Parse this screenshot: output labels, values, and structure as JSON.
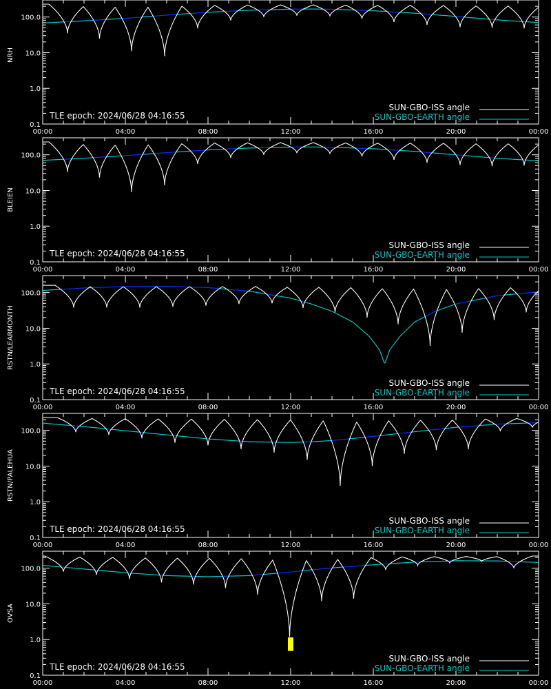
{
  "colors": {
    "background": "#000000",
    "axes": "#ffffff",
    "iss_line": "#ffffff",
    "earth_line_above": "#00cccc",
    "earth_line_below": "#0033ff",
    "marker": "#ffff00"
  },
  "legend": {
    "iss_label": "SUN-GBO-ISS angle",
    "earth_label": "SUN-GBO-EARTH angle"
  },
  "chart_data": [
    {
      "type": "line",
      "ylabel": "NRH",
      "epoch_text": "TLE epoch: 2024/06/28 04:16:55",
      "xlim_hours": [
        0,
        24
      ],
      "x_tick_labels": [
        "00:00",
        "04:00",
        "08:00",
        "12:00",
        "16:00",
        "20:00",
        "00:00"
      ],
      "ylim": [
        0.1,
        300
      ],
      "y_scale": "log",
      "y_tick_labels": [
        "0.1",
        "1.0",
        "10.0",
        "100.0"
      ],
      "earth_series": {
        "x": [
          0,
          2,
          4,
          6,
          8,
          10,
          12,
          13,
          14,
          16,
          18,
          20,
          22,
          24
        ],
        "y": [
          68,
          78,
          92,
          113,
          136,
          155,
          166,
          168,
          165,
          150,
          128,
          104,
          83,
          70
        ]
      },
      "iss_dips": [
        {
          "t": 1.2,
          "min": 35
        },
        {
          "t": 2.75,
          "min": 25
        },
        {
          "t": 4.3,
          "min": 11
        },
        {
          "t": 5.9,
          "min": 8
        },
        {
          "t": 7.5,
          "min": 48
        },
        {
          "t": 9.1,
          "min": 80
        },
        {
          "t": 10.7,
          "min": 100
        },
        {
          "t": 12.3,
          "min": 110
        },
        {
          "t": 13.9,
          "min": 105
        },
        {
          "t": 15.45,
          "min": 90
        },
        {
          "t": 17.0,
          "min": 72
        },
        {
          "t": 18.6,
          "min": 60
        },
        {
          "t": 20.2,
          "min": 52
        },
        {
          "t": 21.75,
          "min": 50
        },
        {
          "t": 23.3,
          "min": 48
        }
      ],
      "iss_max": 230,
      "markers": []
    },
    {
      "type": "line",
      "ylabel": "BLEIEN",
      "epoch_text": "TLE epoch: 2024/06/28 04:16:55",
      "xlim_hours": [
        0,
        24
      ],
      "x_tick_labels": [
        "00:00",
        "04:00",
        "08:00",
        "12:00",
        "16:00",
        "20:00",
        "00:00"
      ],
      "ylim": [
        0.1,
        300
      ],
      "y_scale": "log",
      "y_tick_labels": [
        "0.1",
        "1.0",
        "10.0",
        "100.0"
      ],
      "earth_series": {
        "x": [
          0,
          2,
          4,
          6,
          8,
          10,
          12,
          13,
          14,
          16,
          18,
          20,
          22,
          24
        ],
        "y": [
          70,
          80,
          95,
          115,
          137,
          155,
          165,
          166,
          163,
          148,
          125,
          100,
          80,
          68
        ]
      },
      "iss_dips": [
        {
          "t": 1.2,
          "min": 33
        },
        {
          "t": 2.75,
          "min": 23
        },
        {
          "t": 4.3,
          "min": 9
        },
        {
          "t": 5.9,
          "min": 14
        },
        {
          "t": 7.5,
          "min": 55
        },
        {
          "t": 9.1,
          "min": 82
        },
        {
          "t": 10.7,
          "min": 100
        },
        {
          "t": 12.3,
          "min": 112
        },
        {
          "t": 13.9,
          "min": 106
        },
        {
          "t": 15.45,
          "min": 90
        },
        {
          "t": 17.0,
          "min": 72
        },
        {
          "t": 18.6,
          "min": 60
        },
        {
          "t": 20.2,
          "min": 52
        },
        {
          "t": 21.75,
          "min": 48
        },
        {
          "t": 23.3,
          "min": 50
        }
      ],
      "iss_max": 230,
      "markers": []
    },
    {
      "type": "line",
      "ylabel": "RSTN/LEARMONTH",
      "epoch_text": "TLE epoch: 2024/06/28 04:16:55",
      "xlim_hours": [
        0,
        24
      ],
      "x_tick_labels": [
        "00:00",
        "04:00",
        "08:00",
        "12:00",
        "16:00",
        "20:00",
        "00:00"
      ],
      "ylim": [
        0.1,
        300
      ],
      "y_scale": "log",
      "y_tick_labels": [
        "0.1",
        "1.0",
        "10.0",
        "100.0"
      ],
      "earth_series": {
        "x": [
          0,
          2,
          4,
          6,
          8,
          10,
          12,
          13,
          14,
          15,
          15.8,
          16.3,
          16.55,
          16.8,
          17.3,
          18,
          19,
          20,
          22,
          24
        ],
        "y": [
          115,
          135,
          148,
          150,
          138,
          110,
          70,
          48,
          30,
          15,
          6,
          2.5,
          1.0,
          2.5,
          6,
          15,
          30,
          48,
          82,
          105
        ]
      },
      "iss_dips": [
        {
          "t": 1.5,
          "min": 38
        },
        {
          "t": 3.1,
          "min": 38
        },
        {
          "t": 4.7,
          "min": 38
        },
        {
          "t": 6.3,
          "min": 40
        },
        {
          "t": 7.9,
          "min": 43
        },
        {
          "t": 9.5,
          "min": 48
        },
        {
          "t": 11.1,
          "min": 50
        },
        {
          "t": 12.6,
          "min": 37
        },
        {
          "t": 14.15,
          "min": 28
        },
        {
          "t": 15.7,
          "min": 20
        },
        {
          "t": 17.2,
          "min": 13
        },
        {
          "t": 18.75,
          "min": 3.2
        },
        {
          "t": 20.3,
          "min": 7.5
        },
        {
          "t": 21.85,
          "min": 17
        },
        {
          "t": 23.4,
          "min": 28
        }
      ],
      "iss_max": 160,
      "markers": []
    },
    {
      "type": "line",
      "ylabel": "RSTN/PALEHUA",
      "epoch_text": "TLE epoch: 2024/06/28 04:16:55",
      "xlim_hours": [
        0,
        24
      ],
      "x_tick_labels": [
        "00:00",
        "04:00",
        "08:00",
        "12:00",
        "16:00",
        "20:00",
        "00:00"
      ],
      "ylim": [
        0.1,
        300
      ],
      "y_scale": "log",
      "y_tick_labels": [
        "0.1",
        "1.0",
        "10.0",
        "100.0"
      ],
      "earth_series": {
        "x": [
          0,
          2,
          4,
          6,
          8,
          10,
          12,
          13,
          14,
          16,
          18,
          20,
          22,
          24
        ],
        "y": [
          160,
          128,
          98,
          75,
          58,
          48,
          46,
          48,
          52,
          68,
          92,
          122,
          150,
          165
        ]
      },
      "iss_dips": [
        {
          "t": 1.6,
          "min": 90
        },
        {
          "t": 3.2,
          "min": 75
        },
        {
          "t": 4.8,
          "min": 60
        },
        {
          "t": 6.4,
          "min": 45
        },
        {
          "t": 8.0,
          "min": 38
        },
        {
          "t": 9.6,
          "min": 30
        },
        {
          "t": 11.2,
          "min": 24
        },
        {
          "t": 12.8,
          "min": 15
        },
        {
          "t": 14.4,
          "min": 2.8
        },
        {
          "t": 15.95,
          "min": 10
        },
        {
          "t": 17.5,
          "min": 22
        },
        {
          "t": 19.05,
          "min": 28
        },
        {
          "t": 20.6,
          "min": 30
        },
        {
          "t": 22.15,
          "min": 95
        },
        {
          "t": 23.7,
          "min": 120
        }
      ],
      "iss_max": 230,
      "markers": []
    },
    {
      "type": "line",
      "ylabel": "OVSA",
      "epoch_text": "TLE epoch: 2024/06/28 04:16:55",
      "xlim_hours": [
        0,
        24
      ],
      "x_tick_labels": [
        "00:00",
        "04:00",
        "08:00",
        "12:00",
        "16:00",
        "20:00",
        "00:00"
      ],
      "ylim": [
        0.1,
        300
      ],
      "y_scale": "log",
      "y_tick_labels": [
        "0.1",
        "1.0",
        "10.0",
        "100.0"
      ],
      "earth_series": {
        "x": [
          0,
          2,
          4,
          6,
          8,
          10,
          12,
          13,
          14,
          16,
          18,
          20,
          22,
          24
        ],
        "y": [
          120,
          95,
          75,
          62,
          58,
          62,
          78,
          90,
          102,
          125,
          148,
          162,
          160,
          145
        ]
      },
      "iss_dips": [
        {
          "t": 1.0,
          "min": 80
        },
        {
          "t": 2.6,
          "min": 65
        },
        {
          "t": 4.2,
          "min": 50
        },
        {
          "t": 5.75,
          "min": 40
        },
        {
          "t": 7.3,
          "min": 35
        },
        {
          "t": 8.85,
          "min": 28
        },
        {
          "t": 10.4,
          "min": 18
        },
        {
          "t": 11.95,
          "min": 1.2
        },
        {
          "t": 13.5,
          "min": 12
        },
        {
          "t": 15.05,
          "min": 14
        },
        {
          "t": 16.6,
          "min": 90
        },
        {
          "t": 18.15,
          "min": 120
        },
        {
          "t": 19.7,
          "min": 140
        },
        {
          "t": 21.25,
          "min": 155
        },
        {
          "t": 22.8,
          "min": 100
        }
      ],
      "iss_max": 220,
      "markers": [
        {
          "t": 12.0,
          "y_low": 0.48,
          "y_high": 1.15
        }
      ]
    }
  ]
}
